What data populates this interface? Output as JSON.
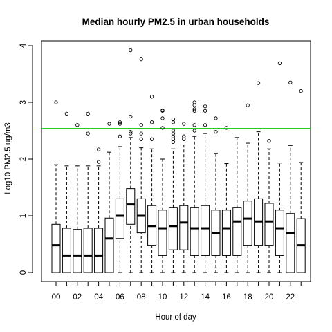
{
  "chart_data": {
    "type": "box",
    "title": "Median hourly PM2.5 in urban households",
    "xlabel": "Hour of day",
    "ylabel": "Log10 PM2.5 ug/m3",
    "ylim": [
      0,
      4
    ],
    "y_ticks": [
      "0",
      "1",
      "2",
      "3",
      "4"
    ],
    "x_tick_labels": [
      "00",
      "02",
      "04",
      "06",
      "08",
      "10",
      "12",
      "14",
      "16",
      "18",
      "20",
      "22"
    ],
    "x_tick_hours": [
      0,
      2,
      4,
      6,
      8,
      10,
      12,
      14,
      16,
      18,
      20,
      22
    ],
    "reference_line": {
      "y": 2.54,
      "color": "#00cc00"
    },
    "categories": [
      0,
      1,
      2,
      3,
      4,
      5,
      6,
      7,
      8,
      9,
      10,
      11,
      12,
      13,
      14,
      15,
      16,
      17,
      18,
      19,
      20,
      21,
      22,
      23
    ],
    "boxes": [
      {
        "hour": 0,
        "whisker_low": 0,
        "q1": 0,
        "median": 0.48,
        "q3": 0.85,
        "whisker_high": 1.9,
        "outliers": [
          3.0
        ]
      },
      {
        "hour": 1,
        "whisker_low": 0,
        "q1": 0,
        "median": 0.3,
        "q3": 0.78,
        "whisker_high": 1.88,
        "outliers": [
          2.8
        ]
      },
      {
        "hour": 2,
        "whisker_low": 0,
        "q1": 0,
        "median": 0.3,
        "q3": 0.76,
        "whisker_high": 1.88,
        "outliers": [
          2.6
        ]
      },
      {
        "hour": 3,
        "whisker_low": 0,
        "q1": 0,
        "median": 0.3,
        "q3": 0.78,
        "whisker_high": 1.88,
        "outliers": [
          2.8,
          2.45
        ]
      },
      {
        "hour": 4,
        "whisker_low": 0,
        "q1": 0,
        "median": 0.3,
        "q3": 0.78,
        "whisker_high": 1.88,
        "outliers": [
          2.17,
          1.95
        ]
      },
      {
        "hour": 5,
        "whisker_low": 0,
        "q1": 0,
        "median": 0.6,
        "q3": 0.96,
        "whisker_high": 2.12,
        "outliers": [
          2.62
        ]
      },
      {
        "hour": 6,
        "whisker_low": 0,
        "q1": 0.6,
        "median": 1.0,
        "q3": 1.3,
        "whisker_high": 2.22,
        "outliers": [
          2.65,
          2.62,
          2.4
        ]
      },
      {
        "hour": 7,
        "whisker_low": 0,
        "q1": 0.85,
        "median": 1.2,
        "q3": 1.48,
        "whisker_high": 2.38,
        "outliers": [
          3.92,
          2.75,
          2.48,
          2.45
        ]
      },
      {
        "hour": 8,
        "whisker_low": 0,
        "q1": 0.7,
        "median": 1.0,
        "q3": 1.3,
        "whisker_high": 2.2,
        "outliers": [
          3.76,
          2.6,
          2.45,
          2.35
        ]
      },
      {
        "hour": 9,
        "whisker_low": 0,
        "q1": 0.48,
        "median": 0.82,
        "q3": 1.18,
        "whisker_high": 2.18,
        "outliers": [
          3.1,
          2.65,
          2.35
        ]
      },
      {
        "hour": 10,
        "whisker_low": 0,
        "q1": 0.3,
        "median": 0.78,
        "q3": 1.1,
        "whisker_high": 2.0,
        "outliers": [
          2.86,
          2.85,
          2.72,
          2.55
        ]
      },
      {
        "hour": 11,
        "whisker_low": 0,
        "q1": 0.4,
        "median": 0.82,
        "q3": 1.15,
        "whisker_high": 2.18,
        "outliers": [
          2.7,
          2.65,
          2.5,
          2.45,
          2.4,
          2.35,
          2.3
        ]
      },
      {
        "hour": 12,
        "whisker_low": 0,
        "q1": 0.4,
        "median": 0.88,
        "q3": 1.18,
        "whisker_high": 2.25,
        "outliers": [
          2.62,
          2.4,
          2.35
        ]
      },
      {
        "hour": 13,
        "whisker_low": 0,
        "q1": 0.3,
        "median": 0.78,
        "q3": 1.15,
        "whisker_high": 2.4,
        "outliers": [
          3.0,
          2.95,
          2.88,
          2.85,
          2.6,
          2.5
        ]
      },
      {
        "hour": 14,
        "whisker_low": 0,
        "q1": 0.3,
        "median": 0.78,
        "q3": 1.18,
        "whisker_high": 2.45,
        "outliers": [
          2.93,
          2.85,
          2.6
        ]
      },
      {
        "hour": 15,
        "whisker_low": 0,
        "q1": 0.3,
        "median": 0.7,
        "q3": 1.1,
        "whisker_high": 2.1,
        "outliers": [
          2.72,
          2.48
        ]
      },
      {
        "hour": 16,
        "whisker_low": 0,
        "q1": 0.3,
        "median": 0.78,
        "q3": 1.1,
        "whisker_high": 1.92,
        "outliers": [
          2.55
        ]
      },
      {
        "hour": 17,
        "whisker_low": 0,
        "q1": 0.3,
        "median": 0.9,
        "q3": 1.15,
        "whisker_high": 2.38,
        "outliers": []
      },
      {
        "hour": 18,
        "whisker_low": 0,
        "q1": 0.48,
        "median": 0.95,
        "q3": 1.26,
        "whisker_high": 2.28,
        "outliers": [
          2.95
        ]
      },
      {
        "hour": 19,
        "whisker_low": 0,
        "q1": 0.48,
        "median": 0.9,
        "q3": 1.3,
        "whisker_high": 2.48,
        "outliers": [
          3.34
        ]
      },
      {
        "hour": 20,
        "whisker_low": 0,
        "q1": 0.48,
        "median": 0.9,
        "q3": 1.22,
        "whisker_high": 2.18,
        "outliers": [
          2.32
        ]
      },
      {
        "hour": 21,
        "whisker_low": 0,
        "q1": 0.3,
        "median": 0.78,
        "q3": 1.1,
        "whisker_high": 1.93,
        "outliers": [
          3.69
        ]
      },
      {
        "hour": 22,
        "whisker_low": 0,
        "q1": 0,
        "median": 0.7,
        "q3": 1.04,
        "whisker_high": 2.24,
        "outliers": [
          3.35
        ]
      },
      {
        "hour": 23,
        "whisker_low": 0,
        "q1": 0,
        "median": 0.48,
        "q3": 0.95,
        "whisker_high": 1.94,
        "outliers": [
          3.2
        ]
      }
    ],
    "grid": false,
    "legend": "none"
  }
}
